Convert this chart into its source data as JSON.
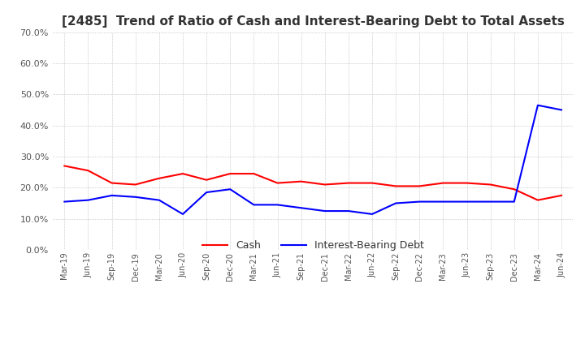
{
  "title": "[2485]  Trend of Ratio of Cash and Interest-Bearing Debt to Total Assets",
  "x_labels": [
    "Mar-19",
    "Jun-19",
    "Sep-19",
    "Dec-19",
    "Mar-20",
    "Jun-20",
    "Sep-20",
    "Dec-20",
    "Mar-21",
    "Jun-21",
    "Sep-21",
    "Dec-21",
    "Mar-22",
    "Jun-22",
    "Sep-22",
    "Dec-22",
    "Mar-23",
    "Jun-23",
    "Sep-23",
    "Dec-23",
    "Mar-24",
    "Jun-24"
  ],
  "cash_values": [
    27.0,
    25.5,
    21.5,
    21.0,
    23.0,
    24.5,
    22.5,
    24.5,
    24.5,
    21.5,
    22.0,
    21.0,
    21.5,
    21.5,
    20.5,
    20.5,
    21.5,
    21.5,
    21.0,
    19.5,
    16.0,
    17.5
  ],
  "debt_values": [
    15.5,
    16.0,
    17.5,
    17.0,
    16.0,
    11.5,
    18.5,
    19.5,
    14.5,
    14.5,
    13.5,
    12.5,
    12.5,
    11.5,
    15.0,
    15.5,
    15.5,
    15.5,
    15.5,
    15.5,
    46.5,
    45.0
  ],
  "cash_color": "#ff0000",
  "debt_color": "#0000ff",
  "ylim": [
    0.0,
    70.0
  ],
  "yticks": [
    0.0,
    10.0,
    20.0,
    30.0,
    40.0,
    50.0,
    60.0,
    70.0
  ],
  "grid_color": "#aaaaaa",
  "background_color": "#ffffff",
  "legend_cash": "Cash",
  "legend_debt": "Interest-Bearing Debt",
  "title_fontsize": 11
}
